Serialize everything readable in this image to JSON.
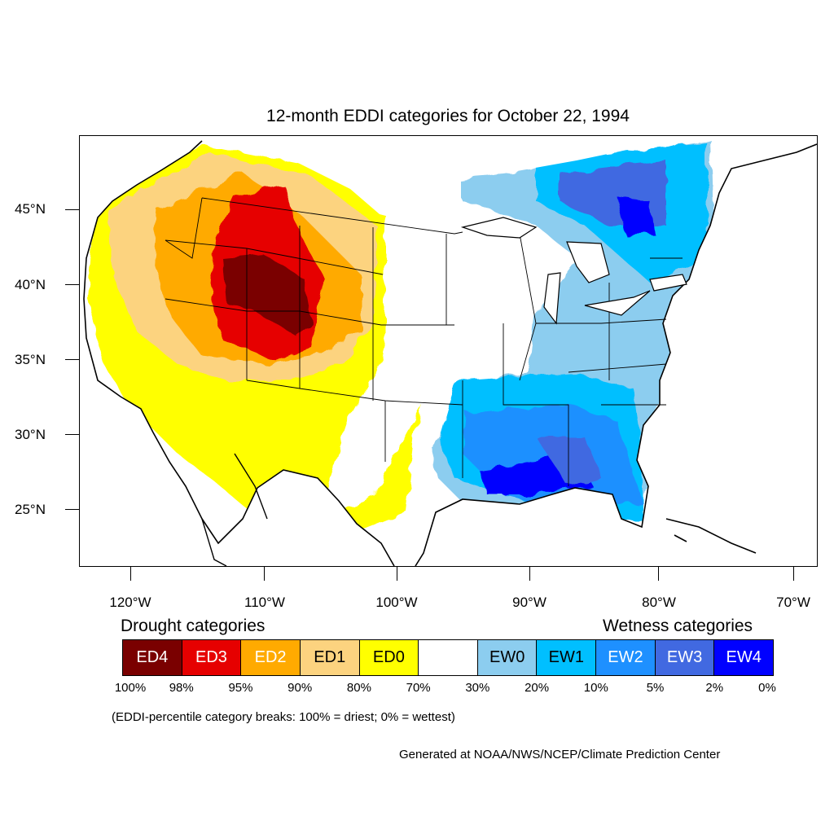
{
  "title": "12-month EDDI categories for October 22, 1994",
  "lat_labels": [
    "45°N",
    "40°N",
    "35°N",
    "30°N",
    "25°N"
  ],
  "lon_labels": [
    "120°W",
    "110°W",
    "100°W",
    "90°W",
    "80°W",
    "70°W"
  ],
  "legend": {
    "drought_heading": "Drought categories",
    "wetness_heading": "Wetness categories",
    "categories": [
      {
        "label": "ED4",
        "color": "#7a0000",
        "text_color": "#ffffff"
      },
      {
        "label": "ED3",
        "color": "#e60000",
        "text_color": "#ffffff"
      },
      {
        "label": "ED2",
        "color": "#ffaa00",
        "text_color": "#ffffff"
      },
      {
        "label": "ED1",
        "color": "#fcd37f",
        "text_color": "#000000"
      },
      {
        "label": "ED0",
        "color": "#ffff00",
        "text_color": "#000000"
      },
      {
        "label": "",
        "color": "#ffffff",
        "text_color": "#000000"
      },
      {
        "label": "EW0",
        "color": "#8ccdef",
        "text_color": "#000000"
      },
      {
        "label": "EW1",
        "color": "#00bfff",
        "text_color": "#000000"
      },
      {
        "label": "EW2",
        "color": "#1e90ff",
        "text_color": "#ffffff"
      },
      {
        "label": "EW3",
        "color": "#4169e1",
        "text_color": "#ffffff"
      },
      {
        "label": "EW4",
        "color": "#0000ff",
        "text_color": "#ffffff"
      }
    ],
    "breaks": [
      "100%",
      "98%",
      "95%",
      "90%",
      "80%",
      "70%",
      "30%",
      "20%",
      "10%",
      "5%",
      "2%",
      "0%"
    ]
  },
  "note": "(EDDI-percentile category breaks: 100% = driest; 0% = wettest)",
  "credit": "Generated at NOAA/NWS/NCEP/Climate Prediction Center"
}
